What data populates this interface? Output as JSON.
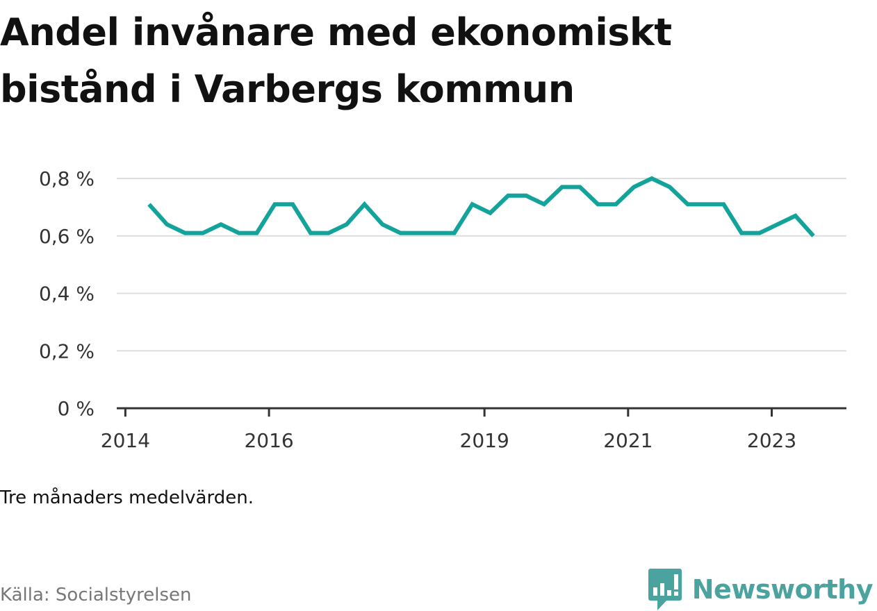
{
  "title": "Andel invånare med ekonomiskt bistånd i Varbergs kommun",
  "note": "Tre månaders medelvärden.",
  "source": "Källa: Socialstyrelsen",
  "brand": {
    "name": "Newsworthy",
    "icon": "bar-chart-speech-bubble-icon",
    "color": "#4aa39f"
  },
  "chart_data": {
    "type": "line",
    "x_tick_labels": [
      "2014",
      "2016",
      "2019",
      "2021",
      "2023"
    ],
    "x_tick_values": [
      2014.0,
      2016.0,
      2019.0,
      2021.0,
      2023.0
    ],
    "x_range": [
      2013.88,
      2024.04
    ],
    "y_tick_labels": [
      "0 %",
      "0,2 %",
      "0,4 %",
      "0,6 %",
      "0,8 %"
    ],
    "y_tick_values": [
      0,
      0.2,
      0.4,
      0.6,
      0.8
    ],
    "ylim": [
      0,
      0.8
    ],
    "grid": true,
    "line_color": "#13a39a",
    "series": [
      {
        "x": [
          2014.33,
          2014.58,
          2014.83,
          2015.08,
          2015.33,
          2015.58,
          2015.83,
          2016.08,
          2016.33,
          2016.58,
          2016.83,
          2017.08,
          2017.33,
          2017.58,
          2017.83,
          2018.08,
          2018.33,
          2018.58,
          2018.83,
          2019.08,
          2019.33,
          2019.58,
          2019.83,
          2020.08,
          2020.33,
          2020.58,
          2020.83,
          2021.08,
          2021.33,
          2021.58,
          2021.83,
          2022.08,
          2022.33,
          2022.58,
          2022.83,
          2023.08,
          2023.33,
          2023.58
        ],
        "values": [
          0.71,
          0.64,
          0.61,
          0.61,
          0.64,
          0.61,
          0.61,
          0.71,
          0.71,
          0.61,
          0.61,
          0.64,
          0.71,
          0.64,
          0.61,
          0.61,
          0.61,
          0.61,
          0.71,
          0.68,
          0.74,
          0.74,
          0.71,
          0.77,
          0.77,
          0.71,
          0.71,
          0.77,
          0.8,
          0.77,
          0.71,
          0.71,
          0.71,
          0.61,
          0.61,
          0.64,
          0.67,
          0.6
        ]
      }
    ]
  }
}
